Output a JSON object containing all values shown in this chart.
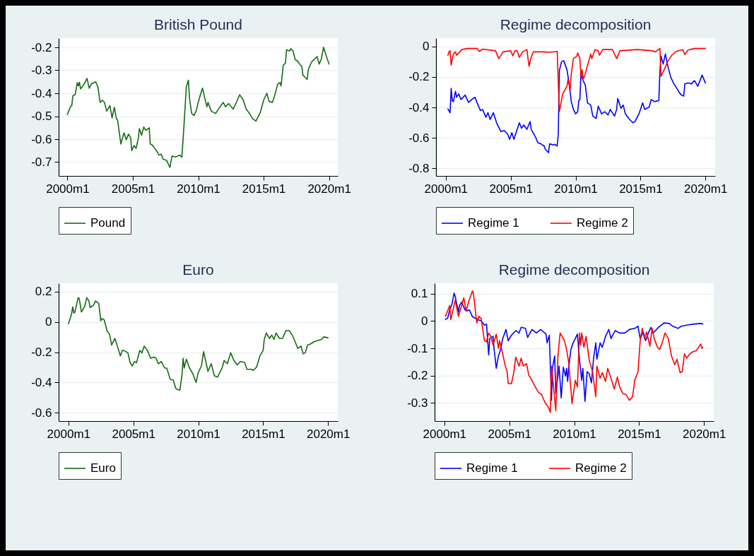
{
  "chart_data": [
    {
      "type": "line",
      "title": "British Pound",
      "grid": "y",
      "legend": "bottom",
      "xlim": [
        "1999-05",
        "2020-09"
      ],
      "ylim": [
        -0.76,
        -0.16
      ],
      "xticks": [
        {
          "value": "2000-01",
          "label": "2000m1"
        },
        {
          "value": "2005-01",
          "label": "2005m1"
        },
        {
          "value": "2010-01",
          "label": "2010m1"
        },
        {
          "value": "2015-01",
          "label": "2015m1"
        },
        {
          "value": "2020-01",
          "label": "2020m1"
        }
      ],
      "yticks": [
        -0.7,
        -0.6,
        -0.5,
        -0.4,
        -0.3,
        -0.2
      ],
      "series": [
        {
          "name": "Pound",
          "color": "#136b13",
          "x": [
            "2000-01",
            "2000-03",
            "2000-04",
            "2000-05",
            "2000-06",
            "2000-08",
            "2000-09",
            "2000-10",
            "2000-11",
            "2000-12",
            "2001-01",
            "2001-03",
            "2001-05",
            "2001-07",
            "2001-09",
            "2001-11",
            "2002-03",
            "2002-05",
            "2002-07",
            "2002-09",
            "2002-11",
            "2003-01",
            "2003-04",
            "2003-06",
            "2003-08",
            "2003-10",
            "2003-11",
            "2004-02",
            "2004-04",
            "2004-05",
            "2004-07",
            "2004-09",
            "2004-11",
            "2004-12",
            "2005-02",
            "2005-04",
            "2005-06",
            "2005-07",
            "2005-09",
            "2005-11",
            "2006-01",
            "2006-04",
            "2006-05",
            "2006-07",
            "2006-10",
            "2007-01",
            "2007-03",
            "2007-05",
            "2007-08",
            "2007-11",
            "2008-01",
            "2008-04",
            "2008-08",
            "2008-10",
            "2008-12",
            "2009-02",
            "2009-04",
            "2009-05",
            "2009-07",
            "2009-09",
            "2009-11",
            "2010-01",
            "2010-03",
            "2010-05",
            "2010-07",
            "2010-09",
            "2010-10",
            "2011-01",
            "2011-05",
            "2011-09",
            "2011-12",
            "2012-02",
            "2012-05",
            "2012-09",
            "2012-12",
            "2013-03",
            "2013-06",
            "2013-09",
            "2013-12",
            "2014-03",
            "2014-06",
            "2014-10",
            "2015-01",
            "2015-04",
            "2015-06",
            "2015-09",
            "2015-11",
            "2016-02",
            "2016-04",
            "2016-05",
            "2016-07",
            "2016-09",
            "2016-10",
            "2017-01",
            "2017-02",
            "2017-04",
            "2017-06",
            "2017-08",
            "2017-10",
            "2017-12",
            "2018-01",
            "2018-03",
            "2018-05",
            "2018-06",
            "2018-09",
            "2018-10",
            "2019-02",
            "2019-04",
            "2019-06",
            "2019-08",
            "2019-11",
            "2020-01"
          ],
          "values": [
            -0.492,
            -0.469,
            -0.457,
            -0.455,
            -0.41,
            -0.407,
            -0.383,
            -0.354,
            -0.368,
            -0.352,
            -0.381,
            -0.369,
            -0.354,
            -0.335,
            -0.378,
            -0.359,
            -0.35,
            -0.373,
            -0.44,
            -0.43,
            -0.44,
            -0.478,
            -0.454,
            -0.507,
            -0.461,
            -0.511,
            -0.516,
            -0.621,
            -0.588,
            -0.573,
            -0.602,
            -0.578,
            -0.593,
            -0.65,
            -0.628,
            -0.64,
            -0.597,
            -0.554,
            -0.583,
            -0.547,
            -0.562,
            -0.55,
            -0.621,
            -0.626,
            -0.645,
            -0.669,
            -0.665,
            -0.688,
            -0.692,
            -0.723,
            -0.673,
            -0.678,
            -0.669,
            -0.678,
            -0.535,
            -0.373,
            -0.343,
            -0.421,
            -0.488,
            -0.497,
            -0.478,
            -0.44,
            -0.407,
            -0.378,
            -0.421,
            -0.459,
            -0.44,
            -0.478,
            -0.488,
            -0.459,
            -0.44,
            -0.459,
            -0.445,
            -0.469,
            -0.44,
            -0.407,
            -0.426,
            -0.469,
            -0.488,
            -0.511,
            -0.521,
            -0.483,
            -0.43,
            -0.4,
            -0.435,
            -0.44,
            -0.412,
            -0.359,
            -0.354,
            -0.368,
            -0.278,
            -0.269,
            -0.211,
            -0.216,
            -0.206,
            -0.216,
            -0.254,
            -0.259,
            -0.273,
            -0.283,
            -0.321,
            -0.33,
            -0.34,
            -0.297,
            -0.264,
            -0.259,
            -0.24,
            -0.273,
            -0.25,
            -0.2,
            -0.245,
            -0.273
          ]
        }
      ]
    },
    {
      "type": "line",
      "title": "Regime decomposition",
      "grid": "y",
      "legend": "bottom",
      "xlim": [
        "1999-04",
        "2020-10"
      ],
      "ylim": [
        -0.85,
        0.055
      ],
      "xticks": [
        {
          "value": "2000-01",
          "label": "2000m1"
        },
        {
          "value": "2005-01",
          "label": "2005m1"
        },
        {
          "value": "2010-01",
          "label": "2010m1"
        },
        {
          "value": "2015-01",
          "label": "2015m1"
        },
        {
          "value": "2020-01",
          "label": "2020m1"
        }
      ],
      "yticks": [
        -0.8,
        -0.6,
        -0.4,
        -0.2,
        0
      ],
      "series": [
        {
          "name": "Regime 1",
          "color": "#0000ff",
          "x": [
            "2000-03",
            "2000-05",
            "2000-06",
            "2000-07",
            "2000-08",
            "2000-10",
            "2000-11",
            "2001-01",
            "2001-03",
            "2001-07",
            "2001-10",
            "2002-01",
            "2002-04",
            "2002-06",
            "2002-09",
            "2002-11",
            "2003-02",
            "2003-04",
            "2003-06",
            "2003-09",
            "2003-12",
            "2004-02",
            "2004-04",
            "2004-07",
            "2004-10",
            "2004-12",
            "2005-02",
            "2005-04",
            "2005-06",
            "2005-09",
            "2005-11",
            "2006-01",
            "2006-04",
            "2006-07",
            "2006-08",
            "2006-12",
            "2007-02",
            "2007-05",
            "2007-08",
            "2007-09",
            "2007-12",
            "2008-01",
            "2008-04",
            "2008-06",
            "2008-08",
            "2008-09",
            "2008-10",
            "2008-12",
            "2009-02",
            "2009-05",
            "2009-07",
            "2009-09",
            "2009-11",
            "2010-01",
            "2010-03",
            "2010-04",
            "2010-05",
            "2010-06",
            "2010-08",
            "2010-10",
            "2010-12",
            "2011-03",
            "2011-05",
            "2011-08",
            "2011-10",
            "2012-01",
            "2012-04",
            "2012-07",
            "2012-09",
            "2013-01",
            "2013-03",
            "2013-04",
            "2013-07",
            "2013-09",
            "2013-11",
            "2014-02",
            "2014-06",
            "2014-08",
            "2014-12",
            "2015-03",
            "2015-05",
            "2015-09",
            "2015-11",
            "2016-02",
            "2016-06",
            "2016-07",
            "2016-08",
            "2016-10",
            "2016-12",
            "2017-02",
            "2017-05",
            "2017-08",
            "2017-10",
            "2018-01",
            "2018-03",
            "2018-05",
            "2018-06",
            "2018-09",
            "2018-12",
            "2019-03",
            "2019-06",
            "2019-10",
            "2020-01"
          ],
          "values": [
            -0.41,
            -0.435,
            -0.275,
            -0.355,
            -0.362,
            -0.294,
            -0.333,
            -0.311,
            -0.348,
            -0.319,
            -0.367,
            -0.348,
            -0.333,
            -0.37,
            -0.421,
            -0.413,
            -0.464,
            -0.435,
            -0.479,
            -0.435,
            -0.501,
            -0.53,
            -0.559,
            -0.552,
            -0.574,
            -0.61,
            -0.566,
            -0.61,
            -0.566,
            -0.501,
            -0.537,
            -0.515,
            -0.544,
            -0.493,
            -0.544,
            -0.595,
            -0.632,
            -0.639,
            -0.654,
            -0.675,
            -0.697,
            -0.639,
            -0.646,
            -0.643,
            -0.654,
            -0.574,
            -0.159,
            -0.1,
            -0.093,
            -0.151,
            -0.239,
            -0.362,
            -0.413,
            -0.442,
            -0.428,
            -0.355,
            -0.348,
            -0.18,
            -0.224,
            -0.253,
            -0.37,
            -0.384,
            -0.457,
            -0.472,
            -0.392,
            -0.442,
            -0.428,
            -0.45,
            -0.413,
            -0.457,
            -0.413,
            -0.341,
            -0.406,
            -0.384,
            -0.442,
            -0.472,
            -0.501,
            -0.493,
            -0.435,
            -0.37,
            -0.413,
            -0.399,
            -0.348,
            -0.362,
            -0.355,
            -0.159,
            -0.064,
            -0.115,
            -0.049,
            -0.122,
            -0.202,
            -0.246,
            -0.268,
            -0.304,
            -0.319,
            -0.326,
            -0.246,
            -0.239,
            -0.246,
            -0.224,
            -0.261,
            -0.188,
            -0.239
          ]
        },
        {
          "name": "Regime 2",
          "color": "#ff0000",
          "x": [
            "2000-03",
            "2000-04",
            "2000-05",
            "2000-06",
            "2000-08",
            "2000-10",
            "2000-11",
            "2001-01",
            "2001-04",
            "2001-09",
            "2002-06",
            "2002-08",
            "2002-11",
            "2003-11",
            "2004-02",
            "2004-06",
            "2005-01",
            "2005-03",
            "2005-05",
            "2005-07",
            "2005-09",
            "2005-12",
            "2006-04",
            "2006-06",
            "2006-08",
            "2006-10",
            "2007-07",
            "2008-01",
            "2008-08",
            "2008-10",
            "2009-01",
            "2009-05",
            "2009-06",
            "2009-08",
            "2009-09",
            "2009-11",
            "2010-02",
            "2010-03",
            "2010-05",
            "2010-06",
            "2010-07",
            "2010-08",
            "2010-09",
            "2010-11",
            "2011-01",
            "2011-03",
            "2011-04",
            "2011-07",
            "2011-10",
            "2011-11",
            "2012-02",
            "2012-11",
            "2013-03",
            "2013-06",
            "2014-10",
            "2015-12",
            "2016-03",
            "2016-07",
            "2016-08",
            "2016-11",
            "2017-02",
            "2017-06",
            "2017-10",
            "2018-04",
            "2018-06",
            "2018-09",
            "2019-03",
            "2020-01"
          ],
          "values": [
            -0.057,
            -0.035,
            -0.028,
            -0.122,
            -0.049,
            -0.035,
            -0.057,
            -0.042,
            -0.02,
            -0.013,
            -0.013,
            -0.032,
            -0.017,
            -0.028,
            -0.079,
            -0.035,
            -0.028,
            -0.061,
            -0.028,
            -0.028,
            -0.071,
            -0.035,
            -0.02,
            -0.13,
            -0.071,
            -0.035,
            -0.035,
            -0.038,
            -0.032,
            -0.428,
            -0.312,
            -0.261,
            -0.217,
            -0.282,
            -0.18,
            -0.079,
            -0.064,
            -0.042,
            -0.079,
            -0.195,
            -0.151,
            -0.21,
            -0.202,
            -0.151,
            -0.1,
            -0.049,
            -0.079,
            -0.02,
            -0.028,
            -0.057,
            -0.02,
            -0.02,
            -0.079,
            -0.028,
            -0.02,
            -0.028,
            -0.035,
            -0.013,
            -0.195,
            -0.151,
            -0.1,
            -0.057,
            -0.032,
            -0.02,
            -0.052,
            -0.023,
            -0.013,
            -0.013
          ]
        }
      ]
    },
    {
      "type": "line",
      "title": "Euro",
      "grid": "y",
      "legend": "bottom",
      "xlim": [
        "1999-04",
        "2020-10"
      ],
      "ylim": [
        -0.655,
        0.255
      ],
      "xticks": [
        {
          "value": "2000-01",
          "label": "2000m1"
        },
        {
          "value": "2005-01",
          "label": "2005m1"
        },
        {
          "value": "2010-01",
          "label": "2010m1"
        },
        {
          "value": "2015-01",
          "label": "2015m1"
        },
        {
          "value": "2020-01",
          "label": "2020m1"
        }
      ],
      "yticks": [
        -0.6,
        -0.4,
        -0.2,
        0,
        0.2
      ],
      "series": [
        {
          "name": "Euro",
          "color": "#136b13",
          "x": [
            "2000-01",
            "2000-03",
            "2000-04",
            "2000-05",
            "2000-06",
            "2000-07",
            "2000-10",
            "2000-11",
            "2001-01",
            "2001-04",
            "2001-06",
            "2001-08",
            "2001-09",
            "2001-12",
            "2002-02",
            "2002-05",
            "2002-07",
            "2002-08",
            "2002-10",
            "2003-01",
            "2003-03",
            "2003-05",
            "2003-08",
            "2003-10",
            "2004-01",
            "2004-03",
            "2004-06",
            "2004-08",
            "2004-10",
            "2004-12",
            "2005-02",
            "2005-04",
            "2005-07",
            "2005-09",
            "2005-11",
            "2006-02",
            "2006-05",
            "2006-08",
            "2006-10",
            "2006-12",
            "2007-03",
            "2007-06",
            "2007-08",
            "2007-11",
            "2008-02",
            "2008-04",
            "2008-05",
            "2008-08",
            "2008-10",
            "2008-11",
            "2008-12",
            "2009-02",
            "2009-05",
            "2009-08",
            "2009-11",
            "2010-01",
            "2010-04",
            "2010-06",
            "2010-08",
            "2010-10",
            "2011-01",
            "2011-04",
            "2011-07",
            "2011-11",
            "2012-01",
            "2012-04",
            "2012-07",
            "2012-10",
            "2013-01",
            "2013-04",
            "2013-08",
            "2013-10",
            "2014-02",
            "2014-04",
            "2014-07",
            "2014-10",
            "2015-01",
            "2015-02",
            "2015-04",
            "2015-07",
            "2015-09",
            "2015-11",
            "2016-01",
            "2016-04",
            "2016-07",
            "2016-10",
            "2017-01",
            "2017-04",
            "2017-07",
            "2017-09",
            "2017-12",
            "2018-02",
            "2018-04",
            "2018-06",
            "2018-09",
            "2018-12",
            "2019-03",
            "2019-07",
            "2019-09",
            "2020-01"
          ],
          "values": [
            -0.012,
            0.029,
            0.058,
            0.099,
            0.058,
            0.065,
            0.16,
            0.153,
            0.065,
            0.102,
            0.16,
            0.138,
            0.095,
            0.109,
            0.138,
            0.124,
            0.007,
            0.022,
            0.015,
            -0.065,
            -0.08,
            -0.153,
            -0.109,
            -0.153,
            -0.225,
            -0.186,
            -0.196,
            -0.204,
            -0.269,
            -0.291,
            -0.262,
            -0.269,
            -0.189,
            -0.204,
            -0.16,
            -0.189,
            -0.24,
            -0.233,
            -0.24,
            -0.276,
            -0.262,
            -0.305,
            -0.305,
            -0.378,
            -0.385,
            -0.436,
            -0.444,
            -0.451,
            -0.349,
            -0.24,
            -0.305,
            -0.247,
            -0.305,
            -0.342,
            -0.4,
            -0.335,
            -0.291,
            -0.196,
            -0.262,
            -0.327,
            -0.276,
            -0.356,
            -0.364,
            -0.305,
            -0.255,
            -0.276,
            -0.204,
            -0.255,
            -0.284,
            -0.262,
            -0.269,
            -0.313,
            -0.313,
            -0.32,
            -0.298,
            -0.225,
            -0.189,
            -0.116,
            -0.073,
            -0.109,
            -0.087,
            -0.116,
            -0.073,
            -0.109,
            -0.109,
            -0.058,
            -0.058,
            -0.087,
            -0.138,
            -0.175,
            -0.16,
            -0.211,
            -0.204,
            -0.153,
            -0.145,
            -0.131,
            -0.124,
            -0.116,
            -0.099,
            -0.105
          ]
        }
      ]
    },
    {
      "type": "line",
      "title": "Regime decomposition",
      "grid": "y",
      "legend": "bottom",
      "xlim": [
        "1999-04",
        "2020-10"
      ],
      "ylim": [
        -0.366,
        0.138
      ],
      "xticks": [
        {
          "value": "2000-01",
          "label": "2000m1"
        },
        {
          "value": "2005-01",
          "label": "2005m1"
        },
        {
          "value": "2010-01",
          "label": "2010m1"
        },
        {
          "value": "2015-01",
          "label": "2015m1"
        },
        {
          "value": "2020-01",
          "label": "2020m1"
        }
      ],
      "yticks": [
        -0.3,
        -0.2,
        -0.1,
        0,
        0.1
      ],
      "series": [
        {
          "name": "Regime 1",
          "color": "#0000ff",
          "x": [
            "2000-02",
            "2000-04",
            "2000-06",
            "2000-08",
            "2000-10",
            "2000-11",
            "2001-02",
            "2001-03",
            "2001-05",
            "2001-08",
            "2001-10",
            "2001-12",
            "2002-03",
            "2002-08",
            "2002-11",
            "2003-02",
            "2003-04",
            "2003-06",
            "2003-07",
            "2003-10",
            "2003-11",
            "2004-01",
            "2004-03",
            "2004-05",
            "2004-07",
            "2004-10",
            "2004-12",
            "2005-03",
            "2005-05",
            "2005-07",
            "2005-10",
            "2005-12",
            "2006-04",
            "2006-06",
            "2006-10",
            "2007-02",
            "2007-06",
            "2007-11",
            "2007-12",
            "2008-02",
            "2008-04",
            "2008-05",
            "2008-07",
            "2008-08",
            "2008-10",
            "2008-11",
            "2009-01",
            "2009-03",
            "2009-05",
            "2009-06",
            "2009-07",
            "2009-08",
            "2009-10",
            "2009-12",
            "2010-02",
            "2010-04",
            "2010-06",
            "2010-08",
            "2010-09",
            "2010-11",
            "2011-01",
            "2011-03",
            "2011-05",
            "2011-07",
            "2011-09",
            "2011-10",
            "2012-01",
            "2012-03",
            "2012-06",
            "2012-09",
            "2012-11",
            "2013-03",
            "2013-07",
            "2013-12",
            "2014-04",
            "2014-09",
            "2014-12",
            "2015-02",
            "2015-05",
            "2015-07",
            "2015-10",
            "2015-12",
            "2016-02",
            "2016-07",
            "2016-12",
            "2017-05",
            "2017-08",
            "2018-01",
            "2018-04",
            "2018-09",
            "2019-04",
            "2019-10",
            "2019-12"
          ],
          "values": [
            0.006,
            0.01,
            0.041,
            0.061,
            0.102,
            0.09,
            0.033,
            0.057,
            0.069,
            0.041,
            0.037,
            0.041,
            0.016,
            0.005,
            0.001,
            -0.015,
            -0.011,
            -0.124,
            -0.064,
            -0.056,
            -0.104,
            -0.173,
            -0.128,
            -0.104,
            -0.064,
            -0.031,
            -0.072,
            -0.052,
            -0.044,
            -0.035,
            -0.044,
            -0.023,
            -0.027,
            -0.06,
            -0.031,
            -0.044,
            -0.031,
            -0.048,
            -0.08,
            -0.052,
            -0.29,
            -0.169,
            -0.128,
            -0.265,
            -0.201,
            -0.165,
            -0.281,
            -0.169,
            -0.201,
            -0.173,
            -0.221,
            -0.169,
            -0.104,
            -0.08,
            -0.064,
            -0.048,
            -0.144,
            -0.217,
            -0.173,
            -0.294,
            -0.185,
            -0.193,
            -0.226,
            -0.136,
            -0.08,
            -0.14,
            -0.08,
            -0.096,
            -0.056,
            -0.031,
            -0.064,
            -0.035,
            -0.044,
            -0.044,
            -0.031,
            -0.027,
            -0.019,
            -0.064,
            -0.04,
            -0.072,
            -0.04,
            -0.023,
            -0.044,
            -0.023,
            -0.007,
            -0.009,
            -0.019,
            -0.027,
            -0.019,
            -0.015,
            -0.011,
            -0.009,
            -0.011
          ]
        },
        {
          "name": "Regime 2",
          "color": "#ff0000",
          "x": [
            "2000-02",
            "2000-06",
            "2000-07",
            "2000-11",
            "2001-02",
            "2001-07",
            "2001-09",
            "2001-12",
            "2002-03",
            "2002-04",
            "2002-07",
            "2002-09",
            "2002-11",
            "2003-02",
            "2003-04",
            "2003-06",
            "2003-08",
            "2003-10",
            "2004-01",
            "2004-03",
            "2004-04",
            "2004-07",
            "2004-09",
            "2004-11",
            "2004-12",
            "2005-03",
            "2005-05",
            "2005-07",
            "2005-10",
            "2005-12",
            "2006-02",
            "2006-05",
            "2006-07",
            "2006-10",
            "2007-01",
            "2007-04",
            "2007-07",
            "2007-10",
            "2008-01",
            "2008-03",
            "2008-04",
            "2008-06",
            "2008-08",
            "2008-10",
            "2008-12",
            "2009-04",
            "2009-06",
            "2009-08",
            "2009-11",
            "2010-02",
            "2010-04",
            "2010-06",
            "2010-07",
            "2010-08",
            "2010-10",
            "2010-12",
            "2011-03",
            "2011-06",
            "2011-09",
            "2011-10",
            "2012-01",
            "2012-03",
            "2012-06",
            "2012-08",
            "2012-11",
            "2013-02",
            "2013-05",
            "2013-07",
            "2013-10",
            "2014-01",
            "2014-04",
            "2014-07",
            "2014-09",
            "2014-12",
            "2015-02",
            "2015-04",
            "2015-06",
            "2015-08",
            "2015-11",
            "2016-01",
            "2016-03",
            "2016-06",
            "2016-08",
            "2016-10",
            "2017-01",
            "2017-04",
            "2017-07",
            "2017-10",
            "2017-12",
            "2018-03",
            "2018-05",
            "2018-07",
            "2018-09",
            "2018-12",
            "2019-03",
            "2019-06",
            "2019-10",
            "2019-11",
            "2019-12"
          ],
          "values": [
            0.017,
            0.057,
            0.005,
            0.077,
            0.017,
            0.085,
            0.037,
            0.077,
            0.11,
            0.098,
            -0.007,
            0.017,
            0.009,
            -0.072,
            -0.076,
            -0.044,
            -0.056,
            -0.088,
            -0.048,
            -0.1,
            -0.072,
            -0.12,
            -0.16,
            -0.185,
            -0.229,
            -0.229,
            -0.193,
            -0.132,
            -0.165,
            -0.136,
            -0.165,
            -0.156,
            -0.197,
            -0.217,
            -0.241,
            -0.261,
            -0.269,
            -0.298,
            -0.314,
            -0.334,
            -0.165,
            -0.245,
            -0.328,
            -0.128,
            -0.044,
            -0.072,
            -0.104,
            -0.152,
            -0.302,
            -0.217,
            -0.241,
            -0.044,
            -0.088,
            -0.044,
            -0.096,
            -0.056,
            -0.144,
            -0.185,
            -0.277,
            -0.165,
            -0.209,
            -0.189,
            -0.221,
            -0.173,
            -0.209,
            -0.249,
            -0.205,
            -0.241,
            -0.265,
            -0.269,
            -0.29,
            -0.277,
            -0.217,
            -0.185,
            -0.072,
            -0.027,
            -0.064,
            -0.04,
            -0.092,
            -0.027,
            -0.064,
            -0.096,
            -0.104,
            -0.084,
            -0.044,
            -0.064,
            -0.128,
            -0.16,
            -0.14,
            -0.189,
            -0.185,
            -0.12,
            -0.136,
            -0.12,
            -0.112,
            -0.108,
            -0.084,
            -0.1,
            -0.096
          ]
        }
      ]
    }
  ]
}
